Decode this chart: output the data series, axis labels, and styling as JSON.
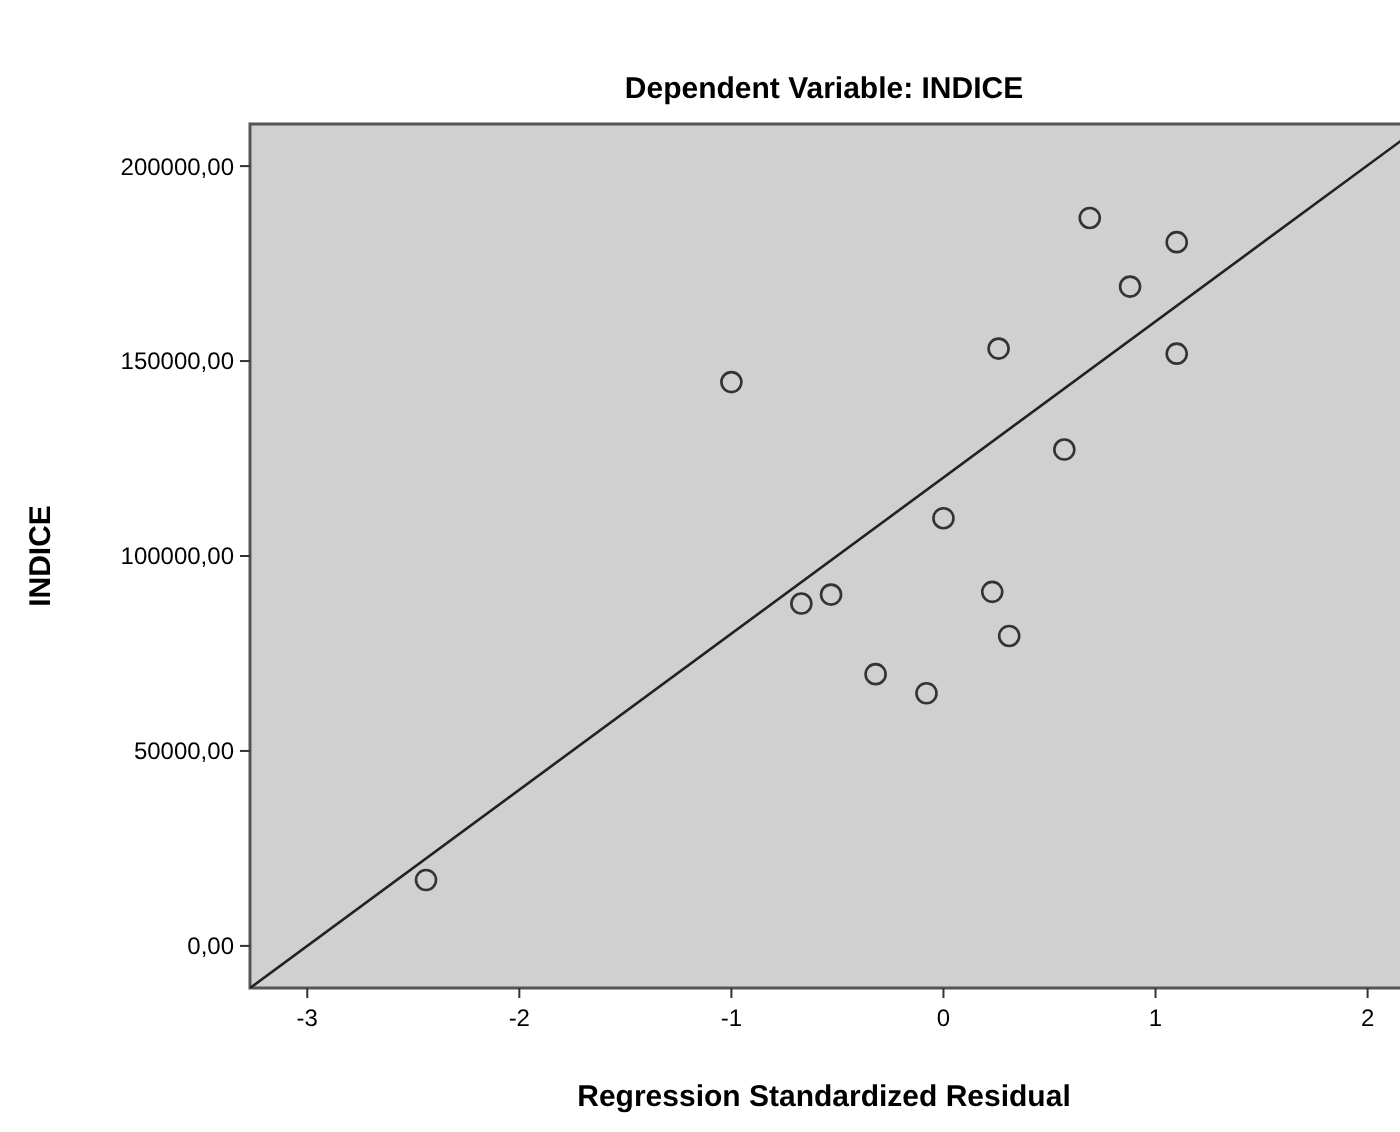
{
  "chart_data": {
    "type": "scatter",
    "title": "Dependent Variable: INDICE",
    "xlabel": "Regression Standardized Residual",
    "ylabel": "INDICE",
    "xlim": [
      -3.27,
      2.2
    ],
    "ylim": [
      -10800,
      210800
    ],
    "xticks": [
      -3,
      -2,
      -1,
      0,
      1,
      2
    ],
    "yticks": [
      {
        "value": 0,
        "label": "0,00"
      },
      {
        "value": 50000,
        "label": "50000,00"
      },
      {
        "value": 100000,
        "label": "100000,00"
      },
      {
        "value": 150000,
        "label": "150000,00"
      },
      {
        "value": 200000,
        "label": "200000,00"
      }
    ],
    "grid": false,
    "series": [
      {
        "color": "#333333",
        "marker": "circle",
        "x": [
          0.69,
          1.1,
          0.88,
          0.26,
          1.1,
          0.57,
          0.0,
          -0.53,
          -0.67,
          0.23,
          0.31,
          -0.32,
          -0.08,
          -1.0,
          -2.44
        ],
        "values": [
          186700,
          180500,
          169100,
          153200,
          151900,
          127300,
          109700,
          90100,
          87800,
          90800,
          79500,
          69700,
          64800,
          144600,
          16900
        ]
      },
      {
        "type": "line",
        "color": "#222222",
        "x": [
          -3.27,
          2.2
        ],
        "values": [
          -10800,
          208200
        ],
        "line_style": "solid",
        "marker": "none"
      }
    ]
  }
}
